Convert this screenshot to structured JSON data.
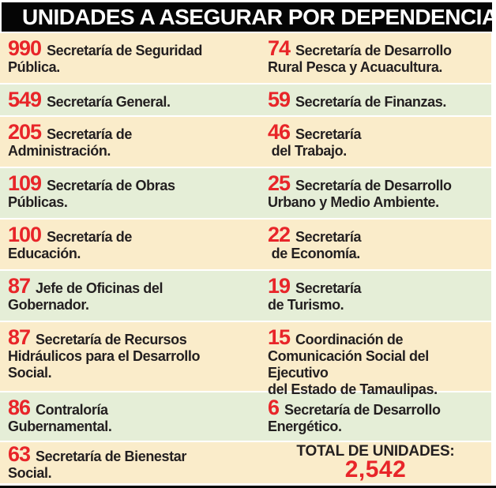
{
  "header": {
    "title": "UNIDADES A ASEGURAR POR DEPENDENCIA"
  },
  "colors": {
    "accent_red": "#e82529",
    "band_cream": "#faecca",
    "band_green": "#e5eed7",
    "text_dark": "#231f20",
    "header_bg": "#050505"
  },
  "rows": [
    {
      "left": {
        "value": "990",
        "label": "Secretaría de Seguridad\nPública."
      },
      "right": {
        "value": "74",
        "label": "Secretaría de Desarrollo\nRural Pesca y Acuacultura."
      }
    },
    {
      "left": {
        "value": "549",
        "label": "Secretaría General."
      },
      "right": {
        "value": "59",
        "label": "Secretaría de Finanzas."
      }
    },
    {
      "left": {
        "value": "205",
        "label": "Secretaría de\nAdministración."
      },
      "right": {
        "value": "46",
        "label": "Secretaría\n del Trabajo."
      }
    },
    {
      "left": {
        "value": "109",
        "label": "Secretaría de Obras\nPúblicas."
      },
      "right": {
        "value": "25",
        "label": "Secretaría de Desarrollo\nUrbano y Medio Ambiente."
      }
    },
    {
      "left": {
        "value": "100",
        "label": "Secretaría de\nEducación."
      },
      "right": {
        "value": "22",
        "label": "Secretaría\n de Economía."
      }
    },
    {
      "left": {
        "value": "87",
        "label": "Jefe de Oficinas del\nGobernador."
      },
      "right": {
        "value": "19",
        "label": "Secretaría\nde Turismo."
      }
    },
    {
      "left": {
        "value": "87",
        "label": "Secretaría de Recursos\nHidráulicos para el Desarrollo\nSocial."
      },
      "right": {
        "value": "15",
        "label": "Coordinación de\nComunicación Social del Ejecutivo\ndel Estado de Tamaulipas."
      }
    },
    {
      "left": {
        "value": "86",
        "label": "Contraloría\nGubernamental."
      },
      "right": {
        "value": "6",
        "label": "Secretaría de Desarrollo\nEnergético."
      }
    },
    {
      "left": {
        "value": "63",
        "label": "Secretaría de Bienestar\nSocial."
      }
    }
  ],
  "total": {
    "label": "TOTAL DE UNIDADES:",
    "value": "2,542"
  },
  "chart_data": {
    "type": "table",
    "title": "UNIDADES A ASEGURAR POR DEPENDENCIA",
    "categories": [
      "Secretaría de Seguridad Pública",
      "Secretaría General",
      "Secretaría de Administración",
      "Secretaría de Obras Públicas",
      "Secretaría de Educación",
      "Jefe de Oficinas del Gobernador",
      "Secretaría de Recursos Hidráulicos para el Desarrollo Social",
      "Contraloría Gubernamental",
      "Secretaría de Bienestar Social",
      "Secretaría de Desarrollo Rural Pesca y Acuacultura",
      "Secretaría de Finanzas",
      "Secretaría del Trabajo",
      "Secretaría de Desarrollo Urbano y Medio Ambiente",
      "Secretaría de Economía",
      "Secretaría de Turismo",
      "Coordinación de Comunicación Social del Ejecutivo del Estado de Tamaulipas",
      "Secretaría de Desarrollo Energético"
    ],
    "values": [
      990,
      549,
      205,
      109,
      100,
      87,
      87,
      86,
      63,
      74,
      59,
      46,
      25,
      22,
      19,
      15,
      6
    ],
    "total_label": "TOTAL DE UNIDADES:",
    "total": 2542
  }
}
